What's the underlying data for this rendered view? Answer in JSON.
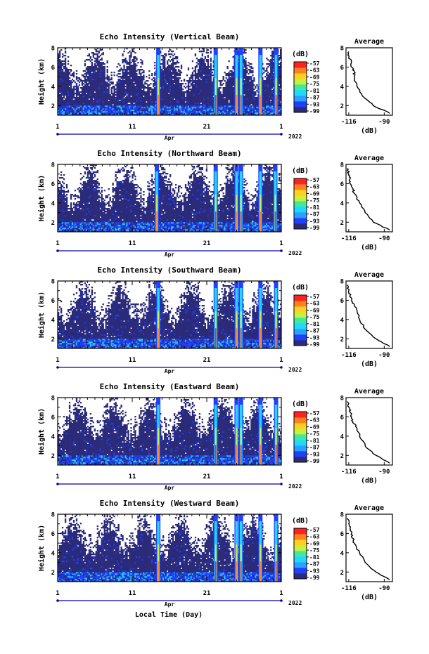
{
  "figure": {
    "xlabel": "Local Time (Day)",
    "month_label": "Apr",
    "year_label": "2022",
    "colorbar_unit": "(dB)",
    "colorbar_ticks": [
      "-57",
      "-63",
      "-69",
      "-75",
      "-81",
      "-87",
      "-93",
      "-99"
    ],
    "colorbar_colors": [
      "#2b2b7a",
      "#2040ff",
      "#2aa0ff",
      "#20d8ff",
      "#40e8a0",
      "#c8f040",
      "#ffd020",
      "#ff8020",
      "#ff2020"
    ],
    "profile_title": "Average",
    "profile_xlabel": "(dB)"
  },
  "chart_data": [
    {
      "type": "heatmap",
      "title": "Echo Intensity (Vertical Beam)",
      "ylabel": "Height (km)",
      "xlim": [
        1,
        31
      ],
      "ylim": [
        1,
        8
      ],
      "x_ticks": [
        "1",
        "11",
        "21",
        "1"
      ],
      "y_ticks": [
        "2",
        "4",
        "6",
        "8"
      ],
      "color_range": [
        -99,
        -57
      ],
      "spike_days": [
        14.5,
        22.2,
        25,
        25.6,
        28.2,
        30.3
      ],
      "profile": {
        "xlim": [
          -118,
          -84
        ],
        "x_ticks": [
          "-116",
          "-90"
        ],
        "height": [
          1.2,
          2,
          3,
          4,
          5,
          5.5,
          6,
          6.5,
          7,
          7.6
        ],
        "db": [
          -86,
          -98,
          -106,
          -110,
          -112,
          -112,
          -114,
          -114,
          -116,
          -116
        ]
      }
    },
    {
      "type": "heatmap",
      "title": "Echo Intensity (Northward Beam)",
      "ylabel": "Height (km)",
      "xlim": [
        1,
        31
      ],
      "ylim": [
        1,
        8
      ],
      "x_ticks": [
        "1",
        "11",
        "21",
        "1"
      ],
      "y_ticks": [
        "2",
        "4",
        "6",
        "8"
      ],
      "color_range": [
        -99,
        -57
      ],
      "spike_days": [
        14.3,
        22.2,
        25,
        25.6,
        28.2,
        30.2
      ],
      "profile": {
        "xlim": [
          -118,
          -84
        ],
        "x_ticks": [
          "-116",
          "-90"
        ],
        "height": [
          1.2,
          2,
          3,
          4,
          5,
          5.5,
          6,
          6.5,
          7,
          7.6
        ],
        "db": [
          -86,
          -98,
          -104,
          -108,
          -112,
          -113,
          -115,
          -115,
          -116,
          -117
        ]
      }
    },
    {
      "type": "heatmap",
      "title": "Echo Intensity (Southward Beam)",
      "ylabel": "Height (km)",
      "xlim": [
        1,
        31
      ],
      "ylim": [
        1,
        8
      ],
      "x_ticks": [
        "1",
        "11",
        "21",
        "1"
      ],
      "y_ticks": [
        "2",
        "4",
        "6",
        "8"
      ],
      "color_range": [
        -99,
        -57
      ],
      "spike_days": [
        14.5,
        22.2,
        25,
        25.6,
        28.2,
        30.3
      ],
      "profile": {
        "xlim": [
          -118,
          -84
        ],
        "x_ticks": [
          "-116",
          "-90"
        ],
        "height": [
          1.2,
          2,
          3,
          4,
          5,
          5.5,
          6,
          6.5,
          7,
          7.6
        ],
        "db": [
          -86,
          -96,
          -104,
          -108,
          -110,
          -112,
          -114,
          -115,
          -116,
          -117
        ]
      }
    },
    {
      "type": "heatmap",
      "title": "Echo Intensity (Eastward Beam)",
      "ylabel": "Height (km)",
      "xlim": [
        1,
        31
      ],
      "ylim": [
        1,
        8
      ],
      "x_ticks": [
        "1",
        "11",
        "21",
        "1"
      ],
      "y_ticks": [
        "2",
        "4",
        "6",
        "8"
      ],
      "color_range": [
        -99,
        -57
      ],
      "spike_days": [
        14.5,
        22.2,
        25,
        25.6,
        28.2,
        30.3
      ],
      "profile": {
        "xlim": [
          -118,
          -84
        ],
        "x_ticks": [
          "-116",
          "-90"
        ],
        "height": [
          1.2,
          2,
          3,
          4,
          5,
          5.5,
          6,
          6.5,
          7,
          7.6
        ],
        "db": [
          -86,
          -96,
          -104,
          -108,
          -111,
          -113,
          -114,
          -115,
          -116,
          -117
        ]
      }
    },
    {
      "type": "heatmap",
      "title": "Echo Intensity (Westward Beam)",
      "ylabel": "Height (km)",
      "xlim": [
        1,
        31
      ],
      "ylim": [
        1,
        8
      ],
      "x_ticks": [
        "1",
        "11",
        "21",
        "1"
      ],
      "y_ticks": [
        "2",
        "4",
        "6",
        "8"
      ],
      "color_range": [
        -99,
        -57
      ],
      "spike_days": [
        14.5,
        22.2,
        25,
        25.6,
        28.2,
        30.3
      ],
      "profile": {
        "xlim": [
          -118,
          -84
        ],
        "x_ticks": [
          "-116",
          "-90"
        ],
        "height": [
          1.2,
          2,
          3,
          4,
          5,
          5.5,
          6,
          6.5,
          7,
          7.6
        ],
        "db": [
          -86,
          -96,
          -104,
          -108,
          -112,
          -113,
          -114,
          -115,
          -116,
          -117
        ]
      }
    }
  ]
}
